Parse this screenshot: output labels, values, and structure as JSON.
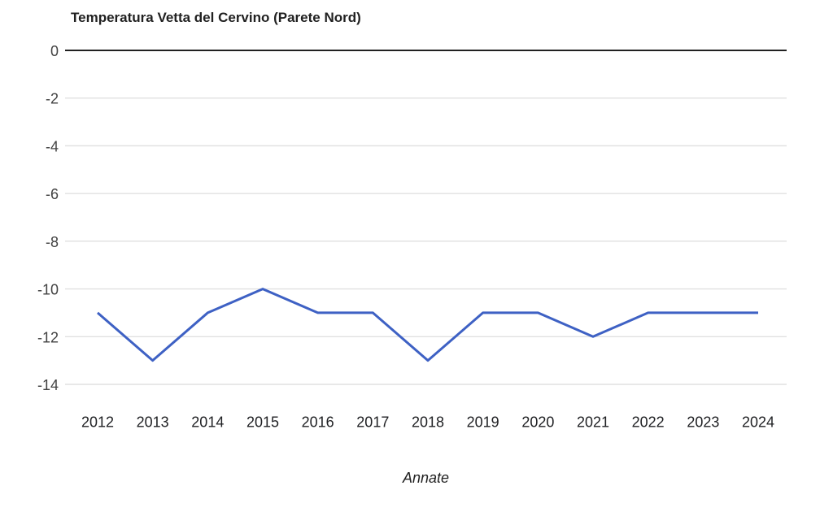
{
  "chart_data": {
    "type": "line",
    "title": "Temperatura Vetta del Cervino (Parete Nord)",
    "xlabel": "Annate",
    "ylabel": "",
    "categories": [
      "2012",
      "2013",
      "2014",
      "2015",
      "2016",
      "2017",
      "2018",
      "2019",
      "2020",
      "2021",
      "2022",
      "2023",
      "2024"
    ],
    "values": [
      -11,
      -13,
      -11,
      -10,
      -11,
      -11,
      -13,
      -11,
      -11,
      -12,
      -11,
      -11,
      -11
    ],
    "ylim": [
      -14,
      0
    ],
    "yticks": [
      0,
      -2,
      -4,
      -6,
      -8,
      -10,
      -12,
      -14
    ],
    "grid": true,
    "legend": "none",
    "colors": {
      "line": "#3e61c4",
      "grid": "#e0e0e0",
      "zero_axis": "#212121",
      "y_tick_label": "#424242",
      "x_tick_label": "#202124",
      "title": "#212121"
    }
  }
}
